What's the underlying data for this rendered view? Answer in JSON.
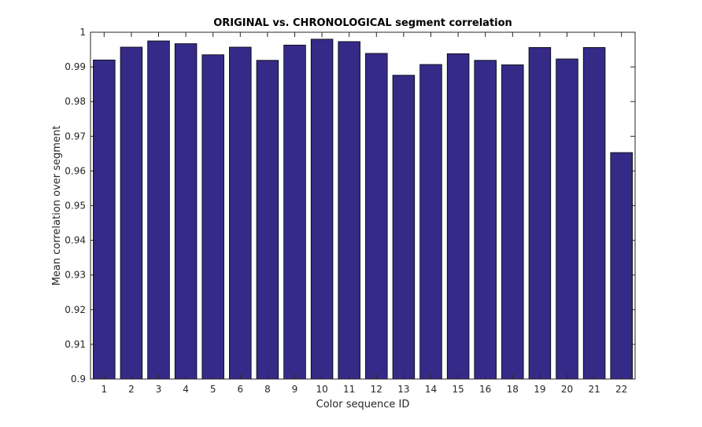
{
  "chart_data": {
    "type": "bar",
    "title": "ORIGINAL vs. CHRONOLOGICAL segment correlation",
    "xlabel": "Color sequence ID",
    "ylabel": "Mean correlation over segment",
    "categories": [
      "1",
      "2",
      "3",
      "4",
      "5",
      "6",
      "8",
      "9",
      "10",
      "11",
      "12",
      "13",
      "14",
      "15",
      "16",
      "18",
      "19",
      "20",
      "21",
      "22"
    ],
    "values": [
      0.992,
      0.9957,
      0.9975,
      0.9967,
      0.9935,
      0.9957,
      0.9919,
      0.9963,
      0.998,
      0.9973,
      0.9939,
      0.9876,
      0.9907,
      0.9938,
      0.9919,
      0.9906,
      0.9956,
      0.9923,
      0.9956,
      0.9653
    ],
    "ylim": [
      0.9,
      1.0
    ],
    "yticks": [
      0.9,
      0.91,
      0.92,
      0.93,
      0.94,
      0.95,
      0.96,
      0.97,
      0.98,
      0.99,
      1
    ],
    "ytick_labels": [
      "0.9",
      "0.91",
      "0.92",
      "0.93",
      "0.94",
      "0.95",
      "0.96",
      "0.97",
      "0.98",
      "0.99",
      "1"
    ],
    "bar_color": "#352a87",
    "grid": false
  }
}
